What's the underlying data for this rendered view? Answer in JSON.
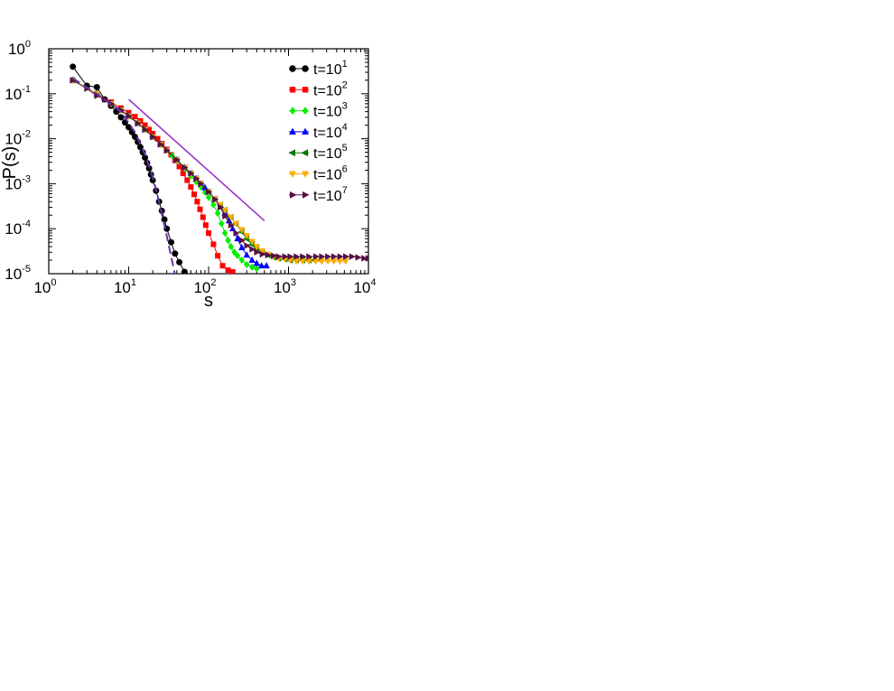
{
  "chart_data": {
    "type": "line",
    "xscale": "log",
    "yscale": "log",
    "xlabel": "s",
    "ylabel": "P(s)",
    "xlim": [
      1,
      10000
    ],
    "ylim": [
      1e-05,
      1
    ],
    "x_ticks": [
      {
        "base": "10",
        "exp": "0",
        "value": 1
      },
      {
        "base": "10",
        "exp": "1",
        "value": 10
      },
      {
        "base": "10",
        "exp": "2",
        "value": 100
      },
      {
        "base": "10",
        "exp": "3",
        "value": 1000
      },
      {
        "base": "10",
        "exp": "4",
        "value": 10000
      }
    ],
    "y_ticks": [
      {
        "base": "10",
        "exp": "0",
        "value": 1
      },
      {
        "base": "10",
        "exp": "-1",
        "value": 0.1
      },
      {
        "base": "10",
        "exp": "-2",
        "value": 0.01
      },
      {
        "base": "10",
        "exp": "-3",
        "value": 0.001
      },
      {
        "base": "10",
        "exp": "-4",
        "value": 0.0001
      },
      {
        "base": "10",
        "exp": "-5",
        "value": 1e-05
      }
    ],
    "legend_position": "top-right",
    "series": [
      {
        "name": "t=10",
        "name_exp": "1",
        "color": "#000000",
        "marker": "circle",
        "x": [
          2,
          3,
          4,
          5,
          6,
          7,
          8,
          9,
          10,
          11,
          12,
          13,
          14,
          15,
          16,
          17,
          18,
          19,
          20,
          22,
          24,
          26,
          28,
          30,
          34,
          38,
          43,
          50
        ],
        "y": [
          0.4,
          0.15,
          0.14,
          0.075,
          0.054,
          0.04,
          0.03,
          0.023,
          0.018,
          0.014,
          0.011,
          0.0085,
          0.0065,
          0.005,
          0.0038,
          0.0029,
          0.0022,
          0.0016,
          0.0012,
          0.0007,
          0.0004,
          0.00025,
          0.00016,
          0.0001,
          5e-05,
          2.8e-05,
          1.8e-05,
          1.1e-05
        ]
      },
      {
        "name": "t=10",
        "name_exp": "2",
        "color": "#ff0000",
        "marker": "square",
        "x": [
          2,
          4,
          6,
          8,
          10,
          12,
          14,
          16,
          18,
          20,
          23,
          26,
          30,
          34,
          38,
          43,
          48,
          54,
          60,
          66,
          72,
          78,
          85,
          92,
          100,
          115,
          130,
          150,
          175,
          200
        ],
        "y": [
          0.2,
          0.1,
          0.065,
          0.048,
          0.038,
          0.031,
          0.025,
          0.02,
          0.016,
          0.013,
          0.01,
          0.0078,
          0.0058,
          0.0044,
          0.0033,
          0.0024,
          0.0017,
          0.0012,
          0.00085,
          0.00058,
          0.0004,
          0.00027,
          0.00018,
          0.00012,
          8e-05,
          4.5e-05,
          2.5e-05,
          1.5e-05,
          1.2e-05,
          1.1e-05
        ]
      },
      {
        "name": "t=10",
        "name_exp": "3",
        "color": "#00ee00",
        "marker": "diamond",
        "x": [
          2,
          4,
          6,
          8,
          10,
          13,
          16,
          20,
          25,
          30,
          35,
          40,
          50,
          60,
          70,
          80,
          90,
          100,
          115,
          130,
          145,
          160,
          175,
          190,
          210,
          230,
          260,
          300,
          350,
          400
        ],
        "y": [
          0.2,
          0.1,
          0.06,
          0.043,
          0.032,
          0.022,
          0.016,
          0.011,
          0.0075,
          0.0055,
          0.0042,
          0.0033,
          0.0022,
          0.0015,
          0.0011,
          0.00085,
          0.00065,
          0.0005,
          0.00034,
          0.00022,
          0.00013,
          8e-05,
          5.5e-05,
          4e-05,
          3e-05,
          2.5e-05,
          2e-05,
          1.6e-05,
          1.4e-05,
          1.3e-05
        ]
      },
      {
        "name": "t=10",
        "name_exp": "4",
        "color": "#0000ff",
        "marker": "triangle-up",
        "x": [
          2,
          4,
          6,
          8,
          10,
          13,
          16,
          20,
          25,
          30,
          40,
          50,
          60,
          70,
          80,
          90,
          100,
          120,
          140,
          160,
          180,
          200,
          230,
          260,
          300,
          350,
          400,
          460,
          530
        ],
        "y": [
          0.2,
          0.1,
          0.06,
          0.043,
          0.032,
          0.022,
          0.016,
          0.011,
          0.0075,
          0.0055,
          0.0034,
          0.0023,
          0.0017,
          0.0013,
          0.001,
          0.00082,
          0.00066,
          0.00045,
          0.00031,
          0.00022,
          0.00015,
          0.0001,
          6e-05,
          3.8e-05,
          2.6e-05,
          2e-05,
          1.7e-05,
          1.5e-05,
          1.5e-05
        ]
      },
      {
        "name": "t=10",
        "name_exp": "5",
        "color": "#007700",
        "marker": "triangle-left",
        "x": [
          2,
          4,
          6,
          8,
          10,
          13,
          16,
          20,
          25,
          30,
          40,
          50,
          60,
          70,
          80,
          100,
          120,
          140,
          160,
          190,
          220,
          260,
          300,
          350,
          400,
          470,
          550,
          650,
          750,
          900,
          1050,
          1250,
          1500,
          1800,
          2100,
          2500
        ],
        "y": [
          0.2,
          0.1,
          0.06,
          0.043,
          0.032,
          0.022,
          0.016,
          0.011,
          0.0075,
          0.0055,
          0.0034,
          0.0023,
          0.0017,
          0.0013,
          0.001,
          0.00066,
          0.00046,
          0.00034,
          0.00026,
          0.00018,
          0.00013,
          8.5e-05,
          6e-05,
          4.5e-05,
          3.6e-05,
          3e-05,
          2.6e-05,
          2.3e-05,
          2.2e-05,
          2.1e-05,
          2e-05,
          2e-05,
          2e-05,
          2e-05,
          2e-05,
          2e-05
        ]
      },
      {
        "name": "t=10",
        "name_exp": "6",
        "color": "#ffaa00",
        "marker": "triangle-down",
        "x": [
          2,
          4,
          6,
          8,
          10,
          13,
          16,
          20,
          25,
          30,
          40,
          50,
          60,
          70,
          80,
          100,
          120,
          140,
          160,
          190,
          220,
          260,
          300,
          350,
          400,
          470,
          550,
          650,
          750,
          900,
          1050,
          1250,
          1500,
          1800,
          2200,
          2600,
          3100,
          3700,
          4400,
          5200
        ],
        "y": [
          0.2,
          0.1,
          0.06,
          0.043,
          0.032,
          0.022,
          0.016,
          0.011,
          0.0075,
          0.0055,
          0.0034,
          0.0023,
          0.0017,
          0.0013,
          0.001,
          0.00066,
          0.00046,
          0.00034,
          0.00026,
          0.00018,
          0.00013,
          9.5e-05,
          7e-05,
          5.2e-05,
          4e-05,
          3.2e-05,
          2.7e-05,
          2.4e-05,
          2.2e-05,
          2.1e-05,
          2e-05,
          1.9e-05,
          1.9e-05,
          1.9e-05,
          1.9e-05,
          1.9e-05,
          1.9e-05,
          1.9e-05,
          1.9e-05,
          1.9e-05
        ]
      },
      {
        "name": "t=10",
        "name_exp": "7",
        "color": "#551144",
        "marker": "triangle-right",
        "x": [
          2,
          3,
          4,
          5,
          6,
          8,
          10,
          13,
          16,
          20,
          25,
          30,
          40,
          50,
          60,
          70,
          80,
          100,
          120,
          140,
          160,
          190,
          220,
          260,
          300,
          350,
          400,
          470,
          550,
          650,
          750,
          900,
          1050,
          1250,
          1500,
          1800,
          2200,
          2600,
          3100,
          3700,
          4400,
          5200,
          6200,
          7400,
          8800,
          10000
        ],
        "y": [
          0.2,
          0.13,
          0.09,
          0.075,
          0.06,
          0.043,
          0.032,
          0.022,
          0.016,
          0.011,
          0.0075,
          0.0055,
          0.0034,
          0.0023,
          0.0017,
          0.0013,
          0.001,
          0.00066,
          0.00045,
          0.0003,
          0.00019,
          0.00012,
          8e-05,
          5.5e-05,
          4.2e-05,
          3.5e-05,
          3e-05,
          2.7e-05,
          2.6e-05,
          2.5e-05,
          2.4e-05,
          2.4e-05,
          2.4e-05,
          2.4e-05,
          2.4e-05,
          2.4e-05,
          2.4e-05,
          2.4e-05,
          2.4e-05,
          2.4e-05,
          2.4e-05,
          2.4e-05,
          2.4e-05,
          2.3e-05,
          2.2e-05,
          2.2e-05
        ]
      }
    ],
    "reference_lines": [
      {
        "kind": "power-law",
        "color": "#9933cc",
        "style": "solid",
        "x": [
          10,
          500
        ],
        "y": [
          0.075,
          0.00015
        ]
      },
      {
        "kind": "fit",
        "color": "#6633aa",
        "style": "dashed",
        "x": [
          2,
          4,
          8,
          12,
          16,
          20,
          24,
          28,
          32,
          36,
          40
        ],
        "y": [
          0.22,
          0.1,
          0.04,
          0.014,
          0.0045,
          0.0014,
          0.0004,
          0.00012,
          4e-05,
          1.5e-05,
          6e-06
        ]
      }
    ]
  }
}
